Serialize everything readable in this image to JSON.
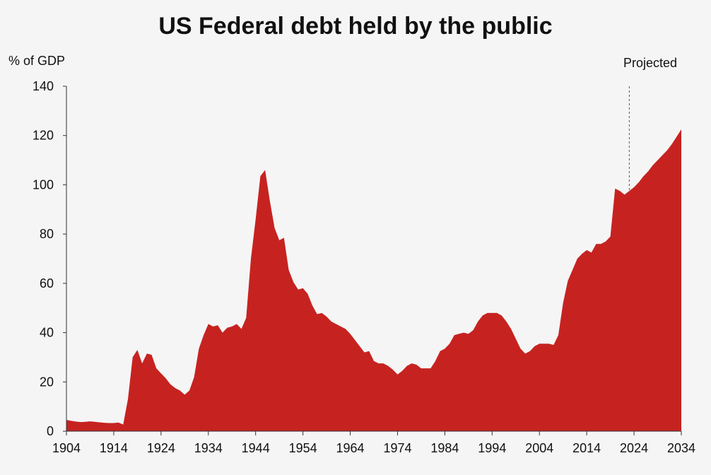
{
  "chart_data": {
    "type": "area",
    "title": "US Federal debt held by the public",
    "ylabel": "% of GDP",
    "xlabel": "",
    "xlim": [
      1904,
      2034
    ],
    "ylim": [
      0,
      140
    ],
    "x_ticks": [
      1904,
      1914,
      1924,
      1934,
      1944,
      1954,
      1964,
      1974,
      1984,
      1994,
      2004,
      2014,
      2024,
      2034
    ],
    "y_ticks": [
      0,
      20,
      40,
      60,
      80,
      100,
      120,
      140
    ],
    "grid": false,
    "fill_color": "#c62320",
    "background_color": "#f5f5f5",
    "annotation": {
      "text": "Projected",
      "x": 2023,
      "style": "dashed vertical line"
    },
    "series": [
      {
        "values": [
          [
            1904,
            4.6
          ],
          [
            1905,
            4.2
          ],
          [
            1906,
            3.9
          ],
          [
            1907,
            3.7
          ],
          [
            1908,
            3.8
          ],
          [
            1909,
            4.0
          ],
          [
            1910,
            3.8
          ],
          [
            1911,
            3.6
          ],
          [
            1912,
            3.4
          ],
          [
            1913,
            3.3
          ],
          [
            1914,
            3.3
          ],
          [
            1915,
            3.5
          ],
          [
            1916,
            2.7
          ],
          [
            1917,
            13.0
          ],
          [
            1918,
            30.0
          ],
          [
            1919,
            33.0
          ],
          [
            1920,
            27.5
          ],
          [
            1921,
            31.5
          ],
          [
            1922,
            31.0
          ],
          [
            1923,
            25.5
          ],
          [
            1924,
            23.5
          ],
          [
            1925,
            21.5
          ],
          [
            1926,
            19.0
          ],
          [
            1927,
            17.5
          ],
          [
            1928,
            16.5
          ],
          [
            1929,
            14.8
          ],
          [
            1930,
            16.5
          ],
          [
            1931,
            22.0
          ],
          [
            1932,
            33.5
          ],
          [
            1933,
            39.0
          ],
          [
            1934,
            43.5
          ],
          [
            1935,
            42.5
          ],
          [
            1936,
            43.0
          ],
          [
            1937,
            40.0
          ],
          [
            1938,
            42.0
          ],
          [
            1939,
            42.5
          ],
          [
            1940,
            43.5
          ],
          [
            1941,
            41.5
          ],
          [
            1942,
            46.0
          ],
          [
            1943,
            70.0
          ],
          [
            1944,
            86.0
          ],
          [
            1945,
            103.5
          ],
          [
            1946,
            106.0
          ],
          [
            1947,
            93.5
          ],
          [
            1948,
            82.5
          ],
          [
            1949,
            77.5
          ],
          [
            1950,
            78.5
          ],
          [
            1951,
            65.5
          ],
          [
            1952,
            60.5
          ],
          [
            1953,
            57.5
          ],
          [
            1954,
            58.0
          ],
          [
            1955,
            55.8
          ],
          [
            1956,
            51.0
          ],
          [
            1957,
            47.5
          ],
          [
            1958,
            48.0
          ],
          [
            1959,
            46.5
          ],
          [
            1960,
            44.5
          ],
          [
            1961,
            43.5
          ],
          [
            1962,
            42.5
          ],
          [
            1963,
            41.5
          ],
          [
            1964,
            39.5
          ],
          [
            1965,
            37.0
          ],
          [
            1966,
            34.5
          ],
          [
            1967,
            32.0
          ],
          [
            1968,
            32.5
          ],
          [
            1969,
            28.5
          ],
          [
            1970,
            27.5
          ],
          [
            1971,
            27.5
          ],
          [
            1972,
            26.5
          ],
          [
            1973,
            25.0
          ],
          [
            1974,
            23.0
          ],
          [
            1975,
            24.5
          ],
          [
            1976,
            26.5
          ],
          [
            1977,
            27.5
          ],
          [
            1978,
            27.0
          ],
          [
            1979,
            25.5
          ],
          [
            1980,
            25.5
          ],
          [
            1981,
            25.5
          ],
          [
            1982,
            28.5
          ],
          [
            1983,
            32.5
          ],
          [
            1984,
            33.5
          ],
          [
            1985,
            35.5
          ],
          [
            1986,
            39.0
          ],
          [
            1987,
            39.5
          ],
          [
            1988,
            40.0
          ],
          [
            1989,
            39.5
          ],
          [
            1990,
            41.0
          ],
          [
            1991,
            44.5
          ],
          [
            1992,
            47.0
          ],
          [
            1993,
            48.0
          ],
          [
            1994,
            48.0
          ],
          [
            1995,
            48.0
          ],
          [
            1996,
            47.0
          ],
          [
            1997,
            44.5
          ],
          [
            1998,
            41.5
          ],
          [
            1999,
            37.5
          ],
          [
            2000,
            33.5
          ],
          [
            2001,
            31.5
          ],
          [
            2002,
            32.5
          ],
          [
            2003,
            34.5
          ],
          [
            2004,
            35.5
          ],
          [
            2005,
            35.5
          ],
          [
            2006,
            35.5
          ],
          [
            2007,
            35.0
          ],
          [
            2008,
            39.0
          ],
          [
            2009,
            52.0
          ],
          [
            2010,
            61.0
          ],
          [
            2011,
            65.5
          ],
          [
            2012,
            70.0
          ],
          [
            2013,
            72.0
          ],
          [
            2014,
            73.5
          ],
          [
            2015,
            72.5
          ],
          [
            2016,
            76.0
          ],
          [
            2017,
            76.0
          ],
          [
            2018,
            77.0
          ],
          [
            2019,
            79.0
          ],
          [
            2020,
            98.5
          ],
          [
            2021,
            97.5
          ],
          [
            2022,
            96.0
          ],
          [
            2023,
            97.5
          ],
          [
            2024,
            99.0
          ],
          [
            2025,
            101.0
          ],
          [
            2026,
            103.5
          ],
          [
            2027,
            105.5
          ],
          [
            2028,
            108.0
          ],
          [
            2029,
            110.0
          ],
          [
            2030,
            112.0
          ],
          [
            2031,
            114.0
          ],
          [
            2032,
            116.5
          ],
          [
            2033,
            119.5
          ],
          [
            2034,
            122.5
          ]
        ]
      }
    ]
  }
}
